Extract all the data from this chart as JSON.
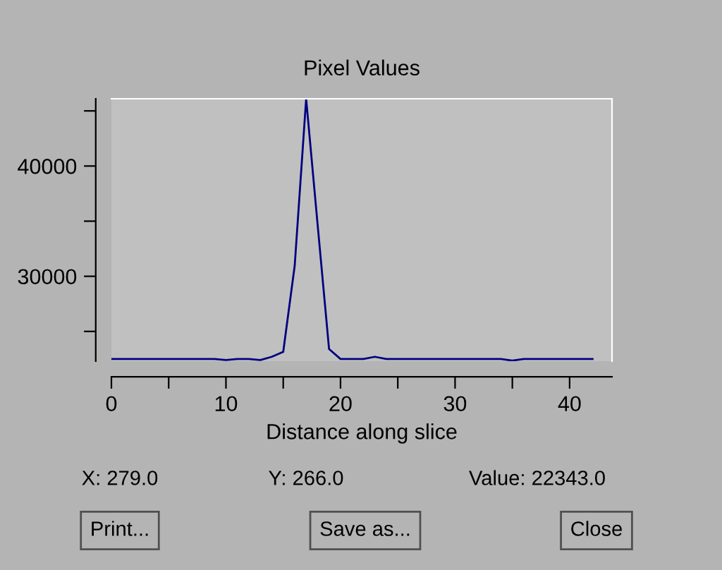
{
  "chart_data": {
    "type": "line",
    "title": "Pixel Values",
    "xlabel": "Distance along slice",
    "x": [
      0,
      5,
      9,
      10,
      11,
      12,
      13,
      14,
      15,
      16,
      17,
      18,
      19,
      20,
      22,
      23,
      24,
      30,
      34,
      35,
      36,
      42
    ],
    "series": [
      {
        "color": "#000080",
        "values": [
          22500,
          22500,
          22500,
          22400,
          22500,
          22500,
          22400,
          22700,
          23150,
          30950,
          46100,
          34700,
          23400,
          22500,
          22500,
          22700,
          22500,
          22500,
          22500,
          22350,
          22500,
          22500
        ]
      }
    ],
    "xlim": [
      0,
      43.7
    ],
    "ylim": [
      22300,
      46100
    ],
    "xticks": [
      0,
      {
        "value": 5,
        "label": null
      },
      10,
      {
        "value": 15,
        "label": null
      },
      20,
      {
        "value": 25,
        "label": null
      },
      30,
      {
        "value": 35,
        "label": null
      },
      40
    ],
    "yticks": [
      {
        "value": 25000,
        "label": null
      },
      30000,
      {
        "value": 35000,
        "label": null
      },
      40000,
      {
        "value": 45000,
        "label": null
      }
    ],
    "grid": false,
    "legend": false,
    "marker": "none",
    "line_style": "solid",
    "annotations": [
      "X: 279.0",
      "Y: 266.0",
      "Value: 22343.0",
      "Print...",
      "Save as...",
      "Close"
    ]
  }
}
